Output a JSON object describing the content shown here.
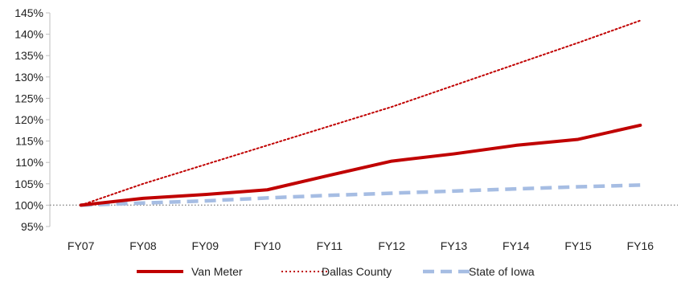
{
  "chart_data": {
    "type": "line",
    "categories": [
      "FY07",
      "FY08",
      "FY09",
      "FY10",
      "FY11",
      "FY12",
      "FY13",
      "FY14",
      "FY15",
      "FY16"
    ],
    "ylim": [
      0.95,
      1.45
    ],
    "yticks": [
      0.95,
      1.0,
      1.05,
      1.1,
      1.15,
      1.2,
      1.25,
      1.3,
      1.35,
      1.4,
      1.45
    ],
    "ytick_labels": [
      "95%",
      "100%",
      "105%",
      "110%",
      "115%",
      "120%",
      "125%",
      "130%",
      "135%",
      "140%",
      "145%"
    ],
    "reference_line": 1.0,
    "legend_position": "bottom",
    "grid": false,
    "series": [
      {
        "name": "Van Meter",
        "color": "#c00000",
        "style": "solid",
        "values": [
          1.0,
          1.016,
          1.025,
          1.036,
          1.07,
          1.103,
          1.12,
          1.14,
          1.154,
          1.187
        ]
      },
      {
        "name": "Dallas County",
        "color": "#c00000",
        "style": "dotted",
        "values": [
          1.0,
          1.05,
          1.095,
          1.14,
          1.185,
          1.23,
          1.28,
          1.33,
          1.38,
          1.432
        ]
      },
      {
        "name": "State of Iowa",
        "color": "#a6bde3",
        "style": "dashed",
        "values": [
          1.0,
          1.005,
          1.01,
          1.017,
          1.023,
          1.028,
          1.033,
          1.038,
          1.043,
          1.047
        ]
      }
    ]
  }
}
